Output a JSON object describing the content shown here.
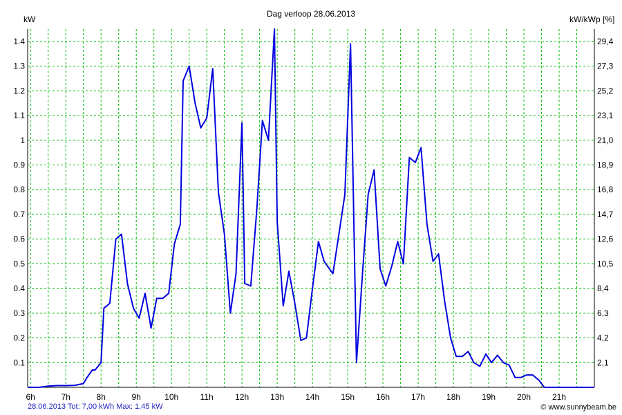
{
  "chart_data": {
    "type": "line",
    "title": "Dag  verloop 28.06.2013",
    "ylabel_left": "kW",
    "ylabel_right": "kW/kWp [%]",
    "x_ticks": [
      "6h",
      "7h",
      "8h",
      "9h",
      "10h",
      "11h",
      "12h",
      "13h",
      "14h",
      "15h",
      "16h",
      "17h",
      "18h",
      "19h",
      "20h",
      "21h"
    ],
    "x_tick_hours": [
      6,
      7,
      8,
      9,
      10,
      11,
      12,
      13,
      14,
      15,
      16,
      17,
      18,
      19,
      20,
      21
    ],
    "xlim": [
      5.917,
      22.0
    ],
    "y_ticks": [
      "0.1",
      "0.2",
      "0.3",
      "0.4",
      "0.5",
      "0.6",
      "0.7",
      "0.8",
      "0.9",
      "1",
      "1.1",
      "1.2",
      "1.3",
      "1.4"
    ],
    "y_tick_values": [
      0.1,
      0.2,
      0.3,
      0.4,
      0.5,
      0.6,
      0.7,
      0.8,
      0.9,
      1.0,
      1.1,
      1.2,
      1.3,
      1.4
    ],
    "y_right_ticks": [
      "2,1",
      "4,2",
      "6,3",
      "8,4",
      "10,5",
      "12,6",
      "14,7",
      "16,8",
      "18,9",
      "21,0",
      "23,1",
      "25,2",
      "27,3",
      "29,4"
    ],
    "ylim": [
      0,
      1.45
    ],
    "grid": true,
    "colors": {
      "line": "#0000e0",
      "grid": "#00bb00",
      "footer": "#1f1fbf"
    },
    "series": [
      {
        "x": [
          5.92,
          6.25,
          6.5,
          6.75,
          7.0,
          7.25,
          7.5,
          7.58,
          7.75,
          7.83,
          8.0,
          8.08,
          8.25,
          8.42,
          8.58,
          8.75,
          8.92,
          9.08,
          9.25,
          9.42,
          9.58,
          9.75,
          9.92,
          10.08,
          10.25,
          10.33,
          10.5,
          10.67,
          10.83,
          11.0,
          11.17,
          11.33,
          11.5,
          11.67,
          11.83,
          12.0,
          12.08,
          12.25,
          12.42,
          12.58,
          12.75,
          12.92,
          13.0,
          13.17,
          13.33,
          13.5,
          13.67,
          13.83,
          14.0,
          14.17,
          14.33,
          14.58,
          14.75,
          14.92,
          15.08,
          15.25,
          15.42,
          15.58,
          15.75,
          15.92,
          16.08,
          16.25,
          16.42,
          16.58,
          16.75,
          16.92,
          17.08,
          17.25,
          17.42,
          17.58,
          17.75,
          17.92,
          18.08,
          18.25,
          18.42,
          18.58,
          18.75,
          18.92,
          19.08,
          19.25,
          19.42,
          19.58,
          19.75,
          19.92,
          20.08,
          20.25,
          20.42,
          20.58,
          20.75,
          20.92,
          21.08,
          21.25,
          21.42,
          21.58,
          21.75,
          22.0
        ],
        "y": [
          0.0,
          0.0,
          0.005,
          0.007,
          0.007,
          0.008,
          0.015,
          0.035,
          0.07,
          0.07,
          0.1,
          0.32,
          0.34,
          0.6,
          0.62,
          0.42,
          0.32,
          0.28,
          0.38,
          0.24,
          0.36,
          0.36,
          0.38,
          0.58,
          0.66,
          1.24,
          1.3,
          1.15,
          1.05,
          1.09,
          1.29,
          0.79,
          0.62,
          0.3,
          0.46,
          1.07,
          0.42,
          0.41,
          0.72,
          1.08,
          1.0,
          1.45,
          0.67,
          0.33,
          0.47,
          0.34,
          0.19,
          0.2,
          0.4,
          0.59,
          0.51,
          0.46,
          0.62,
          0.78,
          1.39,
          0.1,
          0.46,
          0.78,
          0.88,
          0.48,
          0.41,
          0.49,
          0.59,
          0.5,
          0.93,
          0.91,
          0.97,
          0.66,
          0.51,
          0.54,
          0.35,
          0.2,
          0.125,
          0.125,
          0.145,
          0.1,
          0.085,
          0.135,
          0.1,
          0.13,
          0.1,
          0.09,
          0.04,
          0.04,
          0.05,
          0.05,
          0.03,
          0.0,
          0.0,
          0.0,
          0.0,
          0.0,
          0.0,
          0.0,
          0.0,
          0.0
        ]
      }
    ]
  },
  "footer": {
    "left": "28.06.2013 Tot: 7,00 kWh Max: 1,45 kW",
    "right": "© www.sunnybeam.be"
  }
}
